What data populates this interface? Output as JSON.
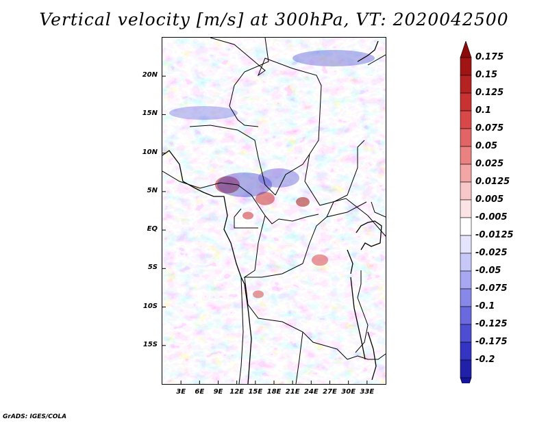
{
  "title": "Vertical velocity [m/s] at 300hPa, VT: 2020042500",
  "map": {
    "variable": "Vertical velocity",
    "units": "m/s",
    "level": "300hPa",
    "valid_time": "2020042500",
    "lat_range": [
      -20,
      25
    ],
    "lon_range": [
      0,
      36
    ],
    "lat_ticks": [
      {
        "value": 20,
        "label": "20N"
      },
      {
        "value": 15,
        "label": "15N"
      },
      {
        "value": 10,
        "label": "10N"
      },
      {
        "value": 5,
        "label": "5N"
      },
      {
        "value": 0,
        "label": "EQ"
      },
      {
        "value": -5,
        "label": "5S"
      },
      {
        "value": -10,
        "label": "10S"
      },
      {
        "value": -15,
        "label": "15S"
      }
    ],
    "lon_ticks": [
      {
        "value": 3,
        "label": "3E"
      },
      {
        "value": 6,
        "label": "6E"
      },
      {
        "value": 9,
        "label": "9E"
      },
      {
        "value": 12,
        "label": "12E"
      },
      {
        "value": 15,
        "label": "15E"
      },
      {
        "value": 18,
        "label": "18E"
      },
      {
        "value": 21,
        "label": "21E"
      },
      {
        "value": 24,
        "label": "24E"
      },
      {
        "value": 27,
        "label": "27E"
      },
      {
        "value": 30,
        "label": "30E"
      },
      {
        "value": 33,
        "label": "33E"
      }
    ]
  },
  "colorbar": {
    "levels": [
      {
        "label": "0.175",
        "color": "#a01414"
      },
      {
        "label": "0.15",
        "color": "#b42222"
      },
      {
        "label": "0.125",
        "color": "#c83232"
      },
      {
        "label": "0.1",
        "color": "#d84848"
      },
      {
        "label": "0.075",
        "color": "#e26464"
      },
      {
        "label": "0.05",
        "color": "#ea8282"
      },
      {
        "label": "0.025",
        "color": "#f2a6a6"
      },
      {
        "label": "0.0125",
        "color": "#f8c8c8"
      },
      {
        "label": "0.005",
        "color": "#fce4e4"
      },
      {
        "label": "-0.005",
        "color": "#ffffff"
      },
      {
        "label": "-0.0125",
        "color": "#e4e4fc"
      },
      {
        "label": "-0.025",
        "color": "#c8c8f8"
      },
      {
        "label": "-0.05",
        "color": "#a8a8f2"
      },
      {
        "label": "-0.075",
        "color": "#8888e8"
      },
      {
        "label": "-0.1",
        "color": "#6a6ade"
      },
      {
        "label": "-0.125",
        "color": "#4e4ed2"
      },
      {
        "label": "-0.175",
        "color": "#3434c2"
      },
      {
        "label": "-0.2",
        "color": "#2020a8"
      }
    ],
    "top_color": "#8c0a0a",
    "bottom_color": "#14149a"
  },
  "footer": "GrADS: IGES/COLA"
}
